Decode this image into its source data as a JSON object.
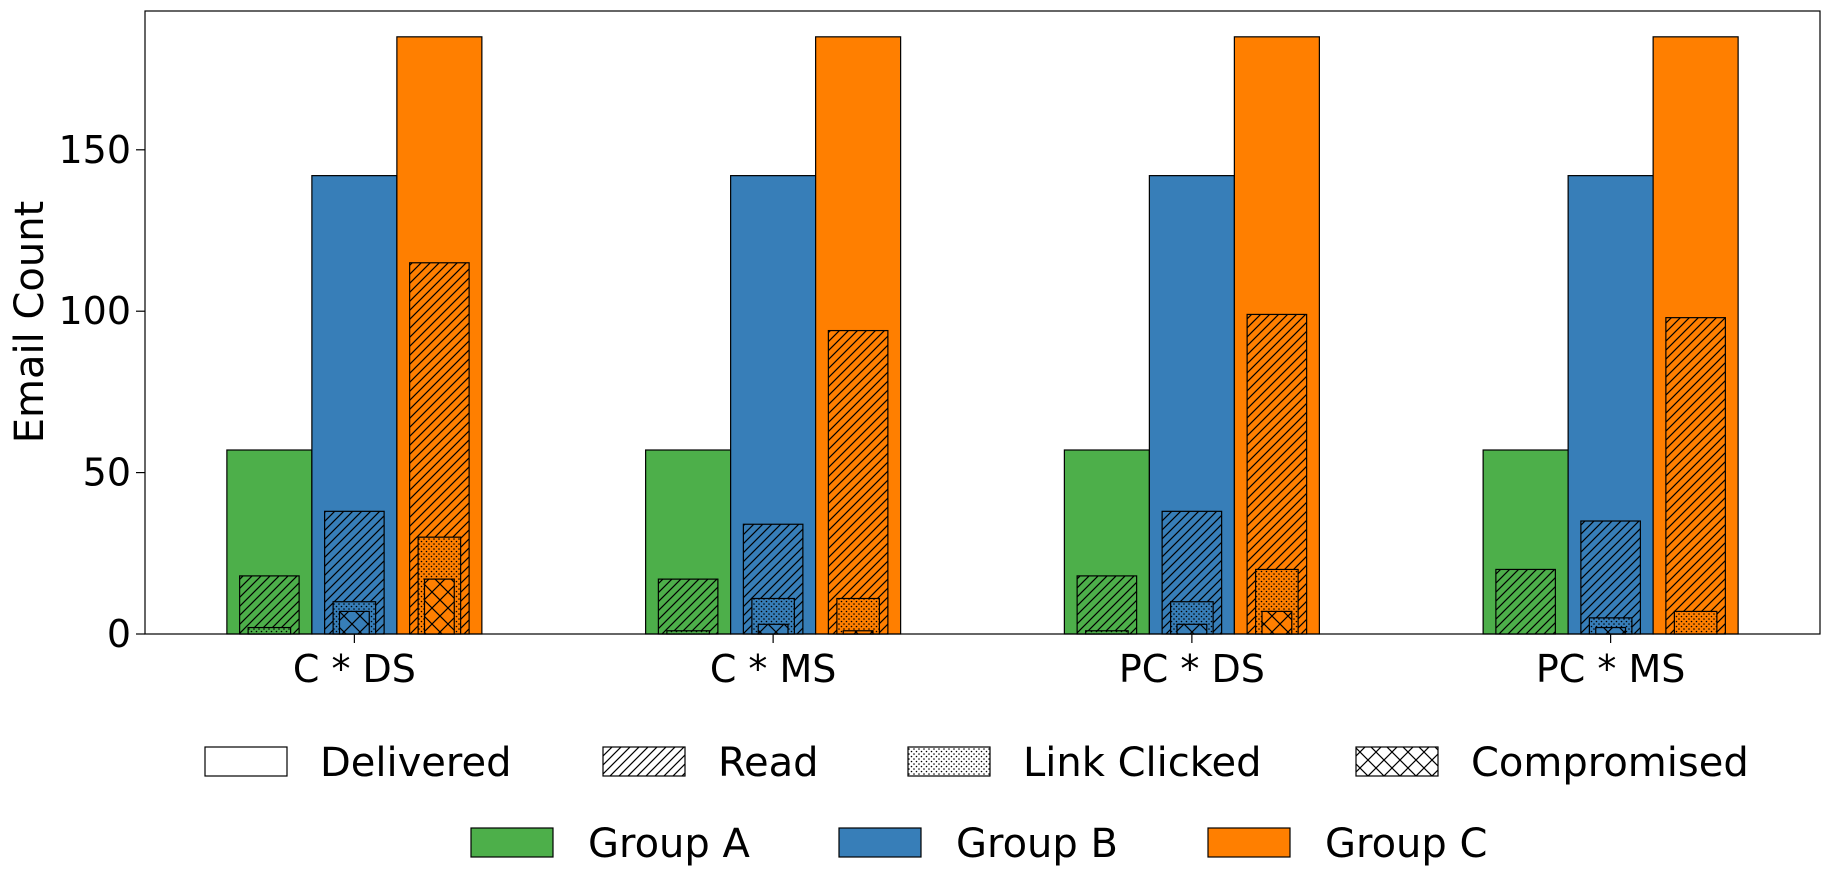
{
  "chart_data": {
    "type": "bar",
    "title": "",
    "xlabel": "",
    "ylabel": "Email Count",
    "ylim": [
      0,
      193
    ],
    "yticks": [
      0,
      50,
      100,
      150
    ],
    "grid": false,
    "legend_position": "bottom",
    "categories": [
      "C * DS",
      "C * MS",
      "PC * DS",
      "PC * MS"
    ],
    "groups": [
      {
        "name": "Group A",
        "color": "#4daf4a"
      },
      {
        "name": "Group B",
        "color": "#377eb8"
      },
      {
        "name": "Group C",
        "color": "#ff7f00"
      }
    ],
    "stages": [
      {
        "name": "Delivered",
        "pattern": "none"
      },
      {
        "name": "Read",
        "pattern": "diagonal"
      },
      {
        "name": "Link Clicked",
        "pattern": "dots"
      },
      {
        "name": "Compromised",
        "pattern": "crosshatch"
      }
    ],
    "values": {
      "Group A": {
        "Delivered": [
          57,
          57,
          57,
          57
        ],
        "Read": [
          18,
          17,
          18,
          20
        ],
        "Link Clicked": [
          2,
          1,
          1,
          0
        ],
        "Compromised": [
          0,
          0,
          0,
          0
        ]
      },
      "Group B": {
        "Delivered": [
          142,
          142,
          142,
          142
        ],
        "Read": [
          38,
          34,
          38,
          35
        ],
        "Link Clicked": [
          10,
          11,
          10,
          5
        ],
        "Compromised": [
          7,
          3,
          3,
          2
        ]
      },
      "Group C": {
        "Delivered": [
          185,
          185,
          185,
          185
        ],
        "Read": [
          115,
          94,
          99,
          98
        ],
        "Link Clicked": [
          30,
          11,
          20,
          7
        ],
        "Compromised": [
          17,
          1,
          7,
          0
        ]
      }
    }
  }
}
